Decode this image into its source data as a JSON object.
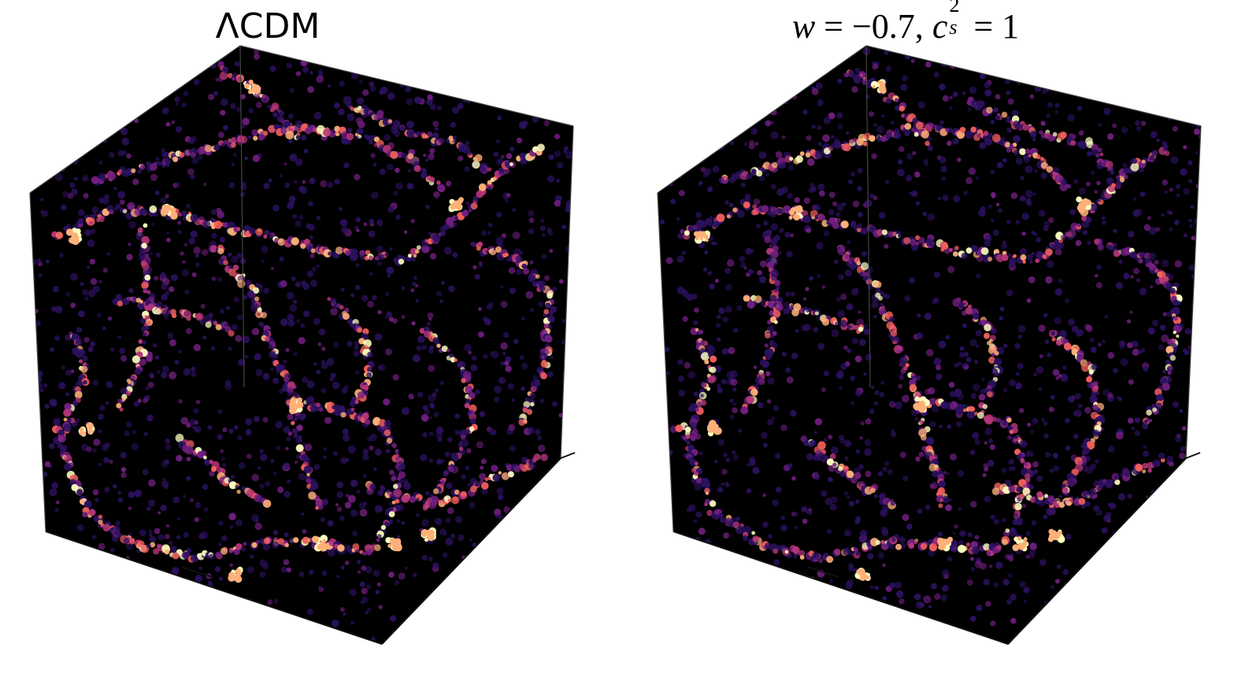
{
  "panels": [
    {
      "title": "ΛCDM"
    },
    {
      "title_parts": {
        "w": "w",
        "eq1": " = −0.7, ",
        "c": "c",
        "sup": "2",
        "sub": "s",
        "eq2": " = 1"
      }
    }
  ],
  "colormap": [
    "#000004",
    "#2c115f",
    "#721f81",
    "#b73779",
    "#f1605d",
    "#feb078",
    "#fcfdbf"
  ],
  "background_color": "#000000"
}
